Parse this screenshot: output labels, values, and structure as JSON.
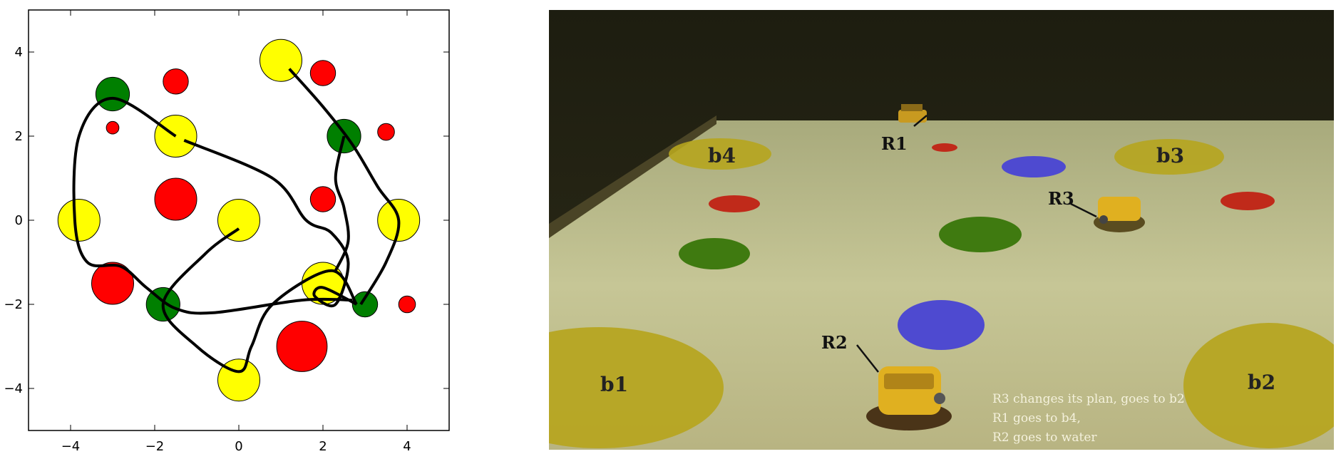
{
  "chart_data": {
    "type": "scatter",
    "xlim": [
      -5,
      5
    ],
    "ylim": [
      -5,
      5
    ],
    "xticks": [
      -4,
      -2,
      0,
      2,
      4
    ],
    "yticks": [
      -4,
      -2,
      0,
      2,
      4
    ],
    "x_tick_labels": [
      "−4",
      "−2",
      "0",
      "2",
      "4"
    ],
    "y_tick_labels": [
      "−4",
      "−2",
      "0",
      "2",
      "4"
    ],
    "grid": false,
    "colors": {
      "yellow": "#ffff00",
      "red": "#ff0000",
      "green": "#007f00",
      "path": "#000000"
    },
    "circles": [
      {
        "x": -3.0,
        "y": 3.0,
        "r": 0.4,
        "color": "green"
      },
      {
        "x": -1.5,
        "y": 3.3,
        "r": 0.3,
        "color": "red"
      },
      {
        "x": -3.0,
        "y": 2.2,
        "r": 0.15,
        "color": "red"
      },
      {
        "x": -1.5,
        "y": 2.0,
        "r": 0.5,
        "color": "yellow"
      },
      {
        "x": 1.0,
        "y": 3.8,
        "r": 0.5,
        "color": "yellow"
      },
      {
        "x": 2.0,
        "y": 3.5,
        "r": 0.3,
        "color": "red"
      },
      {
        "x": 2.5,
        "y": 2.0,
        "r": 0.4,
        "color": "green"
      },
      {
        "x": 3.5,
        "y": 2.1,
        "r": 0.2,
        "color": "red"
      },
      {
        "x": -1.5,
        "y": 0.5,
        "r": 0.5,
        "color": "red"
      },
      {
        "x": 2.0,
        "y": 0.5,
        "r": 0.3,
        "color": "red"
      },
      {
        "x": -3.8,
        "y": 0.0,
        "r": 0.5,
        "color": "yellow"
      },
      {
        "x": 0.0,
        "y": 0.0,
        "r": 0.5,
        "color": "yellow"
      },
      {
        "x": 3.8,
        "y": 0.0,
        "r": 0.5,
        "color": "yellow"
      },
      {
        "x": -3.0,
        "y": -1.5,
        "r": 0.5,
        "color": "red"
      },
      {
        "x": -1.8,
        "y": -2.0,
        "r": 0.4,
        "color": "green"
      },
      {
        "x": 2.0,
        "y": -1.5,
        "r": 0.5,
        "color": "yellow"
      },
      {
        "x": 3.0,
        "y": -2.0,
        "r": 0.3,
        "color": "green"
      },
      {
        "x": 4.0,
        "y": -2.0,
        "r": 0.2,
        "color": "red"
      },
      {
        "x": 1.5,
        "y": -3.0,
        "r": 0.6,
        "color": "red"
      },
      {
        "x": 0.0,
        "y": -3.8,
        "r": 0.5,
        "color": "yellow"
      }
    ],
    "paths": [
      [
        [
          -1.5,
          2.0
        ],
        [
          -3.0,
          2.9
        ],
        [
          -3.8,
          2.0
        ],
        [
          -3.9,
          0.0
        ],
        [
          -3.6,
          -1.0
        ],
        [
          -2.8,
          -1.1
        ],
        [
          -2.2,
          -1.6
        ],
        [
          -1.5,
          -2.1
        ],
        [
          -0.6,
          -2.2
        ],
        [
          1.5,
          -1.9
        ],
        [
          2.7,
          -1.9
        ]
      ],
      [
        [
          1.2,
          3.6
        ],
        [
          2.0,
          2.7
        ],
        [
          2.7,
          1.8
        ],
        [
          3.3,
          0.8
        ],
        [
          3.8,
          0.0
        ],
        [
          3.5,
          -1.0
        ],
        [
          2.9,
          -2.0
        ]
      ],
      [
        [
          0.0,
          -0.2
        ],
        [
          -0.8,
          -0.8
        ],
        [
          -1.8,
          -2.0
        ],
        [
          -1.0,
          -3.0
        ],
        [
          0.0,
          -3.6
        ],
        [
          0.3,
          -3.0
        ],
        [
          0.8,
          -2.0
        ],
        [
          2.2,
          -1.2
        ],
        [
          2.8,
          -2.0
        ]
      ],
      [
        [
          -1.3,
          1.9
        ],
        [
          0.8,
          1.0
        ],
        [
          1.6,
          0.0
        ],
        [
          2.2,
          -0.3
        ],
        [
          2.6,
          -1.0
        ],
        [
          2.3,
          -2.0
        ],
        [
          1.8,
          -1.8
        ],
        [
          2.0,
          -1.6
        ],
        [
          2.8,
          -2.0
        ]
      ],
      [
        [
          2.5,
          2.0
        ],
        [
          2.3,
          1.0
        ],
        [
          2.5,
          0.3
        ],
        [
          2.6,
          -0.5
        ],
        [
          2.3,
          -1.2
        ]
      ]
    ]
  },
  "photo": {
    "robot_labels": [
      "R1",
      "R2",
      "R3"
    ],
    "zone_labels": [
      "b1",
      "b2",
      "b3",
      "b4"
    ],
    "caption_lines": [
      "R3 changes its plan, goes to b2",
      "R1 goes to b4,",
      "R2 goes to water"
    ],
    "colors": {
      "floor": "#c9c99a",
      "zone_yellow": "#b8a820",
      "spot_red": "#c02a1a",
      "spot_blue": "#4e4ad0",
      "spot_green": "#3f7a10",
      "robot_yellow": "#e0b020"
    }
  }
}
